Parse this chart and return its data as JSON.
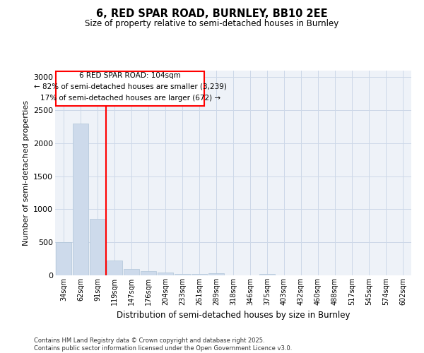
{
  "title": "6, RED SPAR ROAD, BURNLEY, BB10 2EE",
  "subtitle": "Size of property relative to semi-detached houses in Burnley",
  "xlabel": "Distribution of semi-detached houses by size in Burnley",
  "ylabel": "Number of semi-detached properties",
  "categories": [
    "34sqm",
    "62sqm",
    "91sqm",
    "119sqm",
    "147sqm",
    "176sqm",
    "204sqm",
    "233sqm",
    "261sqm",
    "289sqm",
    "318sqm",
    "346sqm",
    "375sqm",
    "403sqm",
    "432sqm",
    "460sqm",
    "488sqm",
    "517sqm",
    "545sqm",
    "574sqm",
    "602sqm"
  ],
  "values": [
    500,
    2300,
    850,
    220,
    100,
    65,
    40,
    25,
    22,
    30,
    0,
    0,
    25,
    0,
    0,
    0,
    0,
    0,
    0,
    0,
    0
  ],
  "bar_color": "#cddaeb",
  "bar_edge_color": "#b0c4d8",
  "vline_color": "red",
  "annotation_title": "6 RED SPAR ROAD: 104sqm",
  "annotation_line1": "← 82% of semi-detached houses are smaller (3,239)",
  "annotation_line2": "17% of semi-detached houses are larger (672) →",
  "annotation_box_color": "red",
  "ylim": [
    0,
    3100
  ],
  "yticks": [
    0,
    500,
    1000,
    1500,
    2000,
    2500,
    3000
  ],
  "grid_color": "#ccd8e8",
  "background_color": "#eef2f8",
  "footer1": "Contains HM Land Registry data © Crown copyright and database right 2025.",
  "footer2": "Contains public sector information licensed under the Open Government Licence v3.0."
}
